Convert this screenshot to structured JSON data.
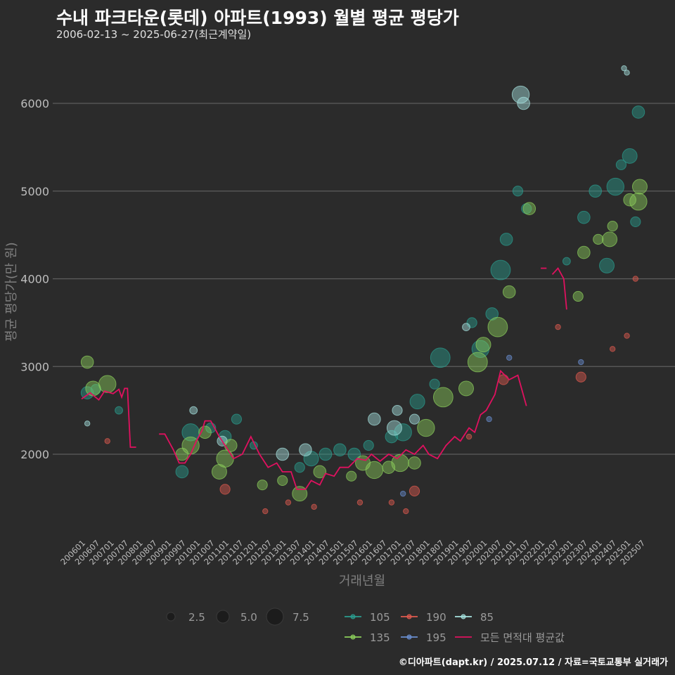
{
  "title": "수내 파크타운(롯데) 아파트(1993) 월별 평균 평당가",
  "subtitle": "2006-02-13 ~ 2025-06-27(최근계약일)",
  "footer": "©디아파트(dapt.kr) / 2025.07.12 / 자료=국토교통부 실거래가",
  "chart_data": {
    "type": "scatter",
    "title": "수내 파크타운(롯데) 아파트(1993) 월별 평균 평당가",
    "xlabel": "거래년월",
    "ylabel": "평균 평당가(만 원)",
    "ylim": [
      1100,
      6500
    ],
    "y_ticks": [
      2000,
      3000,
      4000,
      5000,
      6000
    ],
    "x_tick_labels": [
      "200601",
      "200607",
      "200701",
      "200707",
      "200801",
      "200807",
      "200901",
      "200907",
      "201001",
      "201007",
      "201101",
      "201107",
      "201201",
      "201207",
      "201301",
      "201307",
      "201401",
      "201407",
      "201501",
      "201507",
      "201601",
      "201607",
      "201701",
      "201707",
      "201801",
      "201807",
      "201901",
      "201907",
      "202001",
      "202007",
      "202101",
      "202107",
      "202201",
      "202207",
      "202301",
      "202307",
      "202401",
      "202407",
      "202501",
      "202507"
    ],
    "size_legend": {
      "title": "",
      "values": [
        "2.5",
        "5.0",
        "7.5"
      ]
    },
    "legend": [
      {
        "name": "105",
        "color": "#2a9d8f"
      },
      {
        "name": "190",
        "color": "#e05a4f"
      },
      {
        "name": "85",
        "color": "#a6e3e0"
      },
      {
        "name": "135",
        "color": "#8ccf5b"
      },
      {
        "name": "195",
        "color": "#6a8fd1"
      },
      {
        "name": "모든 면적대 평균값",
        "color": "#e0115f"
      }
    ],
    "series": [
      {
        "name": "105",
        "color": "#2a9d8f",
        "points": [
          [
            2006.2,
            2700,
            4
          ],
          [
            2006.5,
            2740,
            3
          ],
          [
            2007.3,
            2500,
            2
          ],
          [
            2009.5,
            1800,
            4
          ],
          [
            2009.8,
            2250,
            6
          ],
          [
            2010.5,
            2300,
            3
          ],
          [
            2011.0,
            2200,
            4
          ],
          [
            2011.4,
            2400,
            3
          ],
          [
            2012.0,
            2100,
            2
          ],
          [
            2013.6,
            1850,
            3
          ],
          [
            2014.0,
            1950,
            5
          ],
          [
            2014.5,
            2000,
            4
          ],
          [
            2015.0,
            2050,
            4
          ],
          [
            2015.5,
            2000,
            4
          ],
          [
            2016.0,
            2100,
            3
          ],
          [
            2016.8,
            2200,
            4
          ],
          [
            2017.2,
            2250,
            6
          ],
          [
            2017.7,
            2600,
            5
          ],
          [
            2018.3,
            2800,
            3
          ],
          [
            2018.5,
            3100,
            7
          ],
          [
            2019.6,
            3500,
            3
          ],
          [
            2019.9,
            3200,
            6
          ],
          [
            2020.3,
            3600,
            4
          ],
          [
            2020.6,
            4100,
            7
          ],
          [
            2020.8,
            4450,
            4
          ],
          [
            2021.2,
            5000,
            3
          ],
          [
            2021.5,
            4800,
            3
          ],
          [
            2022.9,
            4200,
            2
          ],
          [
            2023.5,
            4700,
            4
          ],
          [
            2023.9,
            5000,
            4
          ],
          [
            2024.3,
            4150,
            5
          ],
          [
            2024.6,
            5050,
            6
          ],
          [
            2024.8,
            5300,
            3
          ],
          [
            2025.1,
            5400,
            5
          ],
          [
            2025.3,
            4650,
            3
          ],
          [
            2025.4,
            5900,
            4
          ]
        ]
      },
      {
        "name": "190",
        "color": "#e05a4f",
        "points": [
          [
            2006.9,
            2150,
            1
          ],
          [
            2011.0,
            1600,
            3
          ],
          [
            2012.4,
            1350,
            1
          ],
          [
            2013.2,
            1450,
            1
          ],
          [
            2014.1,
            1400,
            1
          ],
          [
            2015.7,
            1450,
            1
          ],
          [
            2016.8,
            1450,
            1
          ],
          [
            2017.3,
            1350,
            1
          ],
          [
            2017.6,
            1580,
            3
          ],
          [
            2019.5,
            2200,
            1
          ],
          [
            2020.7,
            2850,
            3
          ],
          [
            2022.6,
            3450,
            1
          ],
          [
            2023.4,
            2880,
            3
          ],
          [
            2024.5,
            3200,
            1
          ],
          [
            2025.0,
            3350,
            1
          ],
          [
            2025.3,
            4000,
            1
          ]
        ]
      },
      {
        "name": "85",
        "color": "#a6e3e0",
        "points": [
          [
            2006.2,
            2350,
            1
          ],
          [
            2009.9,
            2500,
            2
          ],
          [
            2010.9,
            2150,
            3
          ],
          [
            2013.0,
            2000,
            4
          ],
          [
            2013.8,
            2050,
            4
          ],
          [
            2016.2,
            2400,
            4
          ],
          [
            2016.9,
            2300,
            5
          ],
          [
            2017.0,
            2500,
            3
          ],
          [
            2017.6,
            2400,
            3
          ],
          [
            2019.4,
            3450,
            2
          ],
          [
            2021.3,
            6100,
            6
          ],
          [
            2021.4,
            6000,
            4
          ],
          [
            2024.9,
            6400,
            1
          ],
          [
            2025.0,
            6350,
            1
          ]
        ]
      },
      {
        "name": "135",
        "color": "#8ccf5b",
        "points": [
          [
            2006.2,
            3050,
            4
          ],
          [
            2006.4,
            2750,
            5
          ],
          [
            2006.9,
            2800,
            6
          ],
          [
            2009.5,
            2000,
            4
          ],
          [
            2009.8,
            2100,
            6
          ],
          [
            2010.3,
            2250,
            4
          ],
          [
            2010.8,
            1800,
            5
          ],
          [
            2011.0,
            1950,
            6
          ],
          [
            2011.2,
            2100,
            4
          ],
          [
            2012.3,
            1650,
            3
          ],
          [
            2013.0,
            1700,
            3
          ],
          [
            2013.6,
            1550,
            5
          ],
          [
            2014.3,
            1800,
            4
          ],
          [
            2015.4,
            1750,
            3
          ],
          [
            2015.8,
            1900,
            5
          ],
          [
            2016.2,
            1820,
            6
          ],
          [
            2016.7,
            1850,
            4
          ],
          [
            2017.1,
            1900,
            6
          ],
          [
            2017.6,
            1900,
            4
          ],
          [
            2018.0,
            2300,
            6
          ],
          [
            2018.6,
            2650,
            7
          ],
          [
            2019.4,
            2750,
            5
          ],
          [
            2019.8,
            3050,
            7
          ],
          [
            2020.0,
            3250,
            5
          ],
          [
            2020.5,
            3450,
            7
          ],
          [
            2020.9,
            3850,
            4
          ],
          [
            2021.6,
            4800,
            4
          ],
          [
            2023.3,
            3800,
            3
          ],
          [
            2023.5,
            4300,
            4
          ],
          [
            2024.0,
            4450,
            3
          ],
          [
            2024.4,
            4450,
            5
          ],
          [
            2024.5,
            4600,
            3
          ],
          [
            2025.1,
            4900,
            4
          ],
          [
            2025.4,
            4880,
            6
          ],
          [
            2025.45,
            5050,
            5
          ]
        ]
      },
      {
        "name": "195",
        "color": "#6a8fd1",
        "points": [
          [
            2017.2,
            1550,
            1
          ],
          [
            2020.2,
            2400,
            1
          ],
          [
            2020.9,
            3100,
            1
          ],
          [
            2023.4,
            3050,
            1
          ]
        ]
      }
    ],
    "avg_line": {
      "name": "모든 면적대 평균값",
      "color": "#e0115f",
      "segments": [
        [
          [
            2006.0,
            2630
          ],
          [
            2006.3,
            2700
          ],
          [
            2006.6,
            2620
          ],
          [
            2006.8,
            2720
          ],
          [
            2007.1,
            2690
          ],
          [
            2007.3,
            2740
          ],
          [
            2007.4,
            2650
          ],
          [
            2007.5,
            2750
          ],
          [
            2007.6,
            2750
          ],
          [
            2007.7,
            2080
          ],
          [
            2007.9,
            2080
          ]
        ],
        [
          [
            2008.7,
            2230
          ],
          [
            2008.9,
            2230
          ],
          [
            2009.2,
            2050
          ],
          [
            2009.4,
            1900
          ],
          [
            2009.6,
            1900
          ],
          [
            2009.8,
            2000
          ],
          [
            2010.0,
            2150
          ],
          [
            2010.2,
            2270
          ],
          [
            2010.3,
            2380
          ],
          [
            2010.5,
            2380
          ],
          [
            2010.8,
            2200
          ],
          [
            2011.1,
            2050
          ],
          [
            2011.3,
            1950
          ],
          [
            2011.6,
            2000
          ],
          [
            2011.9,
            2200
          ],
          [
            2012.2,
            2000
          ],
          [
            2012.5,
            1850
          ],
          [
            2012.8,
            1900
          ],
          [
            2013.0,
            1800
          ],
          [
            2013.3,
            1800
          ],
          [
            2013.5,
            1600
          ],
          [
            2013.8,
            1600
          ],
          [
            2014.0,
            1700
          ],
          [
            2014.3,
            1650
          ],
          [
            2014.5,
            1780
          ],
          [
            2014.8,
            1750
          ],
          [
            2015.0,
            1850
          ],
          [
            2015.3,
            1850
          ],
          [
            2015.6,
            1950
          ],
          [
            2015.9,
            1930
          ],
          [
            2016.1,
            2000
          ],
          [
            2016.4,
            1920
          ],
          [
            2016.7,
            2000
          ],
          [
            2017.0,
            1950
          ],
          [
            2017.3,
            2050
          ],
          [
            2017.6,
            2000
          ],
          [
            2017.9,
            2100
          ],
          [
            2018.1,
            2000
          ],
          [
            2018.4,
            1950
          ],
          [
            2018.7,
            2100
          ],
          [
            2019.0,
            2200
          ],
          [
            2019.2,
            2150
          ],
          [
            2019.5,
            2300
          ],
          [
            2019.7,
            2250
          ],
          [
            2019.9,
            2450
          ],
          [
            2020.1,
            2500
          ],
          [
            2020.4,
            2680
          ],
          [
            2020.6,
            2950
          ],
          [
            2020.9,
            2850
          ],
          [
            2021.2,
            2900
          ],
          [
            2021.5,
            2550
          ]
        ],
        [
          [
            2022.0,
            4120
          ],
          [
            2022.2,
            4120
          ]
        ],
        [
          [
            2022.4,
            4050
          ],
          [
            2022.6,
            4120
          ],
          [
            2022.8,
            4000
          ],
          [
            2022.9,
            3650
          ]
        ]
      ]
    }
  }
}
